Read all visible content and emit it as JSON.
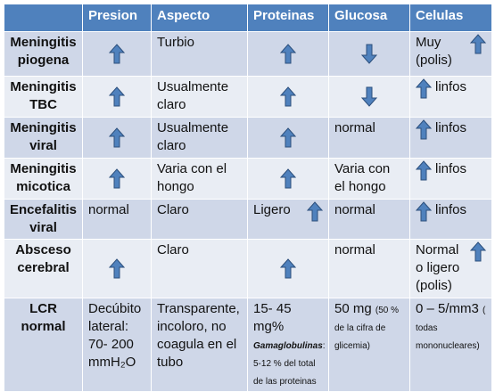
{
  "headers": [
    "",
    "Presion",
    "Aspecto",
    "Proteinas",
    "Glucosa",
    "Celulas"
  ],
  "rows": [
    {
      "name": "Meningitis piogena",
      "presion": {
        "arrow": "up"
      },
      "aspecto": {
        "text": "Turbio"
      },
      "proteinas": {
        "arrow": "up"
      },
      "glucosa": {
        "arrow": "down"
      },
      "celulas": {
        "text": "Muy (polis)",
        "arrow": "up"
      }
    },
    {
      "name": "Meningitis TBC",
      "presion": {
        "arrow": "up"
      },
      "aspecto": {
        "text": "Usualmente claro"
      },
      "proteinas": {
        "arrow": "up"
      },
      "glucosa": {
        "arrow": "down"
      },
      "celulas": {
        "text": "linfos",
        "arrow": "up"
      }
    },
    {
      "name": "Meningitis viral",
      "presion": {
        "arrow": "up"
      },
      "aspecto": {
        "text": "Usualmente claro"
      },
      "proteinas": {
        "arrow": "up"
      },
      "glucosa": {
        "text": "normal"
      },
      "celulas": {
        "text": "linfos",
        "arrow": "up"
      }
    },
    {
      "name": "Meningitis micotica",
      "presion": {
        "arrow": "up"
      },
      "aspecto": {
        "text": "Varia con el hongo"
      },
      "proteinas": {
        "arrow": "up"
      },
      "glucosa": {
        "text": "Varia con el hongo"
      },
      "celulas": {
        "text": "linfos",
        "arrow": "up"
      }
    },
    {
      "name": "Encefalitis viral",
      "presion": {
        "text": "normal"
      },
      "aspecto": {
        "text": "Claro"
      },
      "proteinas": {
        "text": "Ligero",
        "arrow": "up"
      },
      "glucosa": {
        "text": "normal"
      },
      "celulas": {
        "text": "linfos",
        "arrow": "up"
      }
    },
    {
      "name": "Absceso cerebral",
      "presion": {
        "arrow": "up"
      },
      "aspecto": {
        "text": "Claro"
      },
      "proteinas": {
        "arrow": "up"
      },
      "glucosa": {
        "text": "normal"
      },
      "celulas": {
        "text": "Normal o ligero (polis)",
        "arrow": "up"
      }
    },
    {
      "name": "LCR normal",
      "presion": {
        "text": "Decúbito lateral: 70- 200 mmH₂O"
      },
      "aspecto": {
        "text": "Transparente, incoloro, no coagula en el tubo"
      },
      "proteinas": {
        "text": "15- 45 mg%",
        "sub_label": "Gamaglobulinas",
        "sub_text": ": 5-12 % del total de las proteinas"
      },
      "glucosa": {
        "text": "50 mg",
        "sub_text": "(50 % de la cifra de glicemia)"
      },
      "celulas": {
        "text": "0 – 5/mm3",
        "sub_text": "( todas mononucleares)"
      }
    }
  ],
  "colors": {
    "header_bg": "#4f81bd",
    "odd_row": "#cfd7e8",
    "even_row": "#e9edf4",
    "arrow_fill": "#4f81bd",
    "arrow_stroke": "#2c4f7c"
  }
}
